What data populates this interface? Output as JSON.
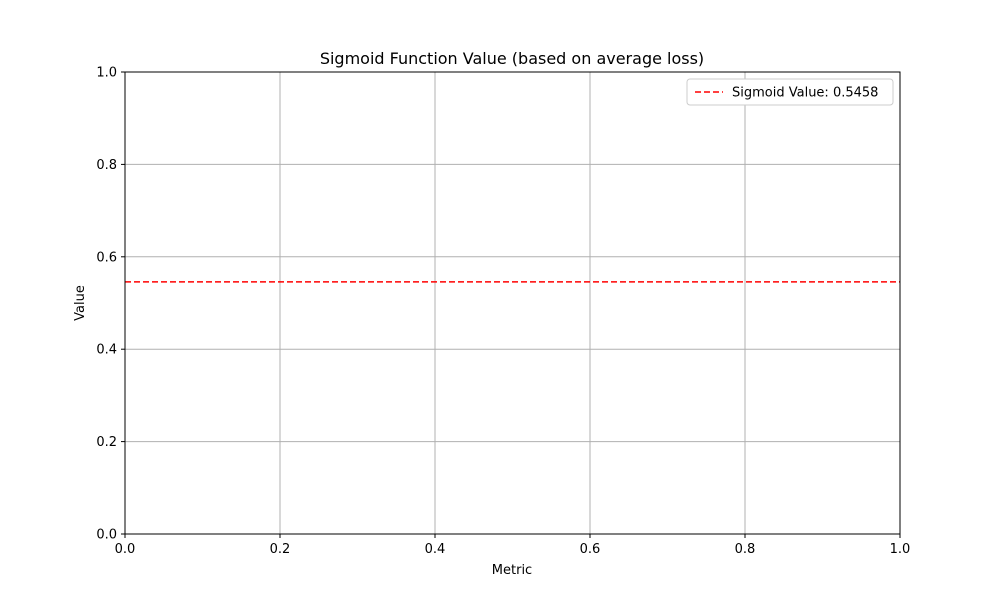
{
  "chart_data": {
    "type": "line",
    "title": "Sigmoid Function Value (based on average loss)",
    "xlabel": "Metric",
    "ylabel": "Value",
    "xlim": [
      0,
      1
    ],
    "ylim": [
      0,
      1
    ],
    "xticks": [
      "0.0",
      "0.2",
      "0.4",
      "0.6",
      "0.8",
      "1.0"
    ],
    "yticks": [
      "0.0",
      "0.2",
      "0.4",
      "0.6",
      "0.8",
      "1.0"
    ],
    "grid": true,
    "legend_position": "top-right",
    "series": [
      {
        "name": "Sigmoid Value: 0.5458",
        "kind": "horizontal-line",
        "y": 0.5458,
        "style": "dashed",
        "color": "#ff0000"
      }
    ]
  }
}
